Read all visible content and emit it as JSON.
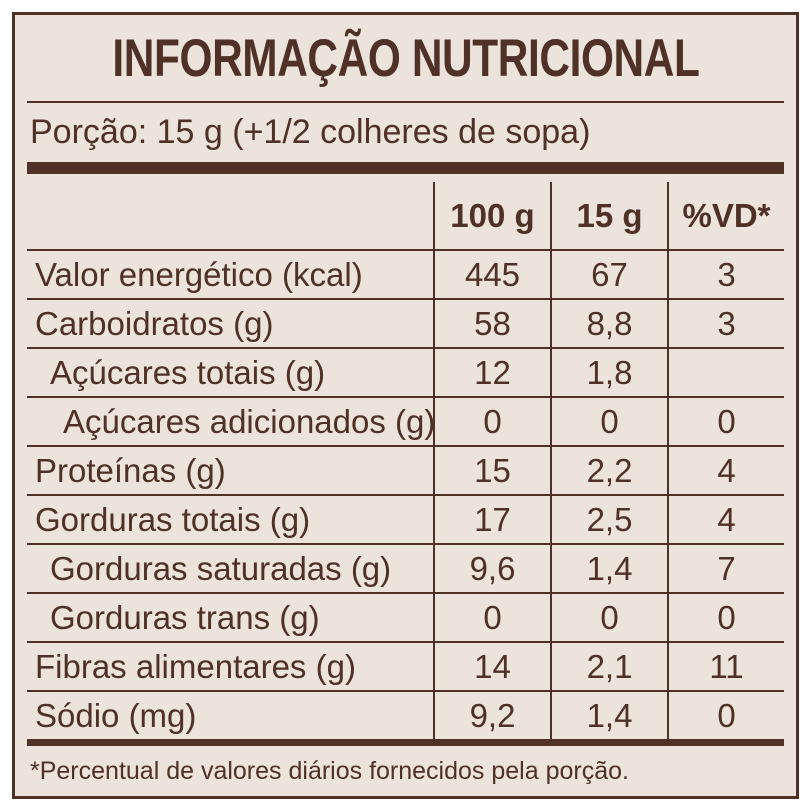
{
  "label": {
    "title": "INFORMAÇÃO NUTRICIONAL",
    "serving_line": "Porção: 15 g (+1/2 colheres de sopa)",
    "columns": [
      "100 g",
      "15 g",
      "%VD*"
    ],
    "rows": [
      {
        "name": "Valor energético (kcal)",
        "indent": 0,
        "per100": "445",
        "per15": "67",
        "vd": "3"
      },
      {
        "name": "Carboidratos (g)",
        "indent": 0,
        "per100": "58",
        "per15": "8,8",
        "vd": "3"
      },
      {
        "name": "Açúcares totais (g)",
        "indent": 1,
        "per100": "12",
        "per15": "1,8",
        "vd": ""
      },
      {
        "name": "Açúcares adicionados (g)",
        "indent": 2,
        "per100": "0",
        "per15": "0",
        "vd": "0"
      },
      {
        "name": "Proteínas (g)",
        "indent": 0,
        "per100": "15",
        "per15": "2,2",
        "vd": "4"
      },
      {
        "name": "Gorduras totais (g)",
        "indent": 0,
        "per100": "17",
        "per15": "2,5",
        "vd": "4"
      },
      {
        "name": "Gorduras saturadas (g)",
        "indent": 1,
        "per100": "9,6",
        "per15": "1,4",
        "vd": "7"
      },
      {
        "name": "Gorduras trans (g)",
        "indent": 1,
        "per100": "0",
        "per15": "0",
        "vd": "0"
      },
      {
        "name": "Fibras alimentares (g)",
        "indent": 0,
        "per100": "14",
        "per15": "2,1",
        "vd": "11"
      },
      {
        "name": "Sódio (mg)",
        "indent": 0,
        "per100": "9,2",
        "per15": "1,4",
        "vd": "0"
      }
    ],
    "footnote": "*Percentual de valores diários fornecidos pela porção.",
    "colors": {
      "ink": "#4F3127",
      "panel_background": "#ECE3DA",
      "page_background": "#FFFFFF"
    }
  }
}
